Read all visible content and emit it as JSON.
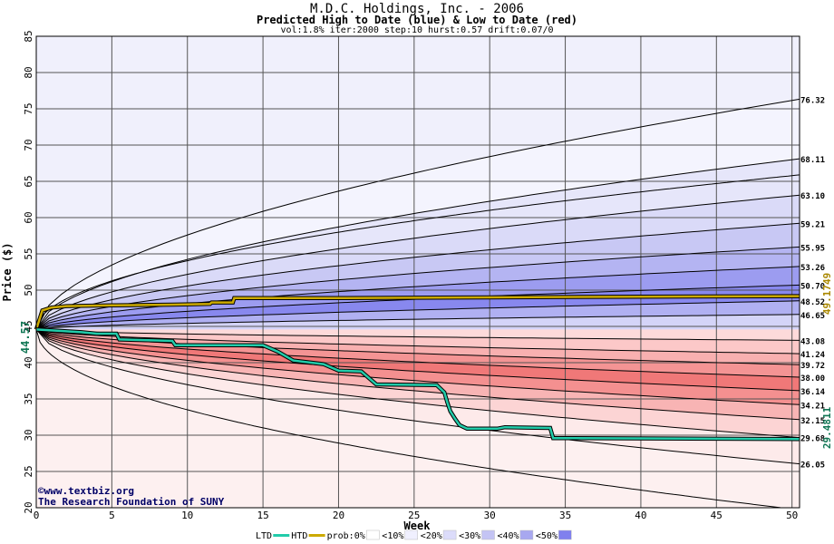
{
  "chart_data": {
    "type": "area",
    "title": "M.D.C. Holdings, Inc. - 2006",
    "subtitle": "Predicted High to Date (blue) &  Low to Date (red)",
    "params": "vol:1.8% iter:2000 step:10 hurst:0.57 drift:0.07/0",
    "xlabel": "Week",
    "ylabel": "Price ($)",
    "xlim": [
      0,
      50.5
    ],
    "ylim": [
      20,
      85
    ],
    "xticks": [
      0,
      5,
      10,
      15,
      20,
      25,
      30,
      35,
      40,
      45,
      50
    ],
    "yticks": [
      20,
      25,
      30,
      35,
      40,
      45,
      50,
      55,
      60,
      65,
      70,
      75,
      80,
      85
    ],
    "grid": true,
    "start_price": 44.57,
    "start_label": "44.57",
    "high_curves_end": [
      76.32,
      68.11,
      63.1,
      59.21,
      55.95,
      53.26,
      50.7,
      48.52,
      46.65
    ],
    "high_curve_labels": [
      "76.32",
      "68.11",
      "63.10",
      "59.21",
      "55.95",
      "53.26",
      "50.70",
      "48.52",
      "46.65"
    ],
    "low_curves_end": [
      43.08,
      41.24,
      39.72,
      38.0,
      36.14,
      34.21,
      32.15,
      29.68,
      26.05
    ],
    "low_curve_labels": [
      "43.08",
      "41.24",
      "39.72",
      "38.00",
      "36.14",
      "34.21",
      "32.15",
      "29.68",
      "26.05"
    ],
    "htd_series": {
      "name": "HTD",
      "color": "#ccaa00",
      "final_label": "49.1749",
      "points": [
        [
          0,
          44.57
        ],
        [
          0.4,
          47.2
        ],
        [
          1,
          47.6
        ],
        [
          2,
          47.8
        ],
        [
          5,
          47.9
        ],
        [
          9,
          48.0
        ],
        [
          11.5,
          48.1
        ],
        [
          11.6,
          48.3
        ],
        [
          13,
          48.3
        ],
        [
          13.1,
          48.9
        ],
        [
          20,
          48.9
        ],
        [
          30,
          49.0
        ],
        [
          40,
          49.1
        ],
        [
          50.5,
          49.17
        ]
      ]
    },
    "ltd_series": {
      "name": "LTD",
      "color": "#22ccaa",
      "final_label": "29.4811",
      "points": [
        [
          0,
          44.57
        ],
        [
          3,
          44.2
        ],
        [
          4,
          44.0
        ],
        [
          5.3,
          44.0
        ],
        [
          5.5,
          43.2
        ],
        [
          9,
          43.0
        ],
        [
          9.2,
          42.4
        ],
        [
          15,
          42.4
        ],
        [
          16,
          41.5
        ],
        [
          17,
          40.3
        ],
        [
          19,
          39.8
        ],
        [
          20,
          38.9
        ],
        [
          21.5,
          38.8
        ],
        [
          22,
          37.9
        ],
        [
          22.5,
          37.0
        ],
        [
          26.5,
          36.9
        ],
        [
          27,
          35.9
        ],
        [
          27.2,
          34.5
        ],
        [
          27.4,
          33.3
        ],
        [
          27.7,
          32.3
        ],
        [
          28,
          31.4
        ],
        [
          28.5,
          30.9
        ],
        [
          29.5,
          30.9
        ],
        [
          30.5,
          30.9
        ],
        [
          31,
          31.1
        ],
        [
          34,
          31.0
        ],
        [
          34.2,
          29.6
        ],
        [
          50.5,
          29.48
        ]
      ]
    },
    "legend": {
      "items": [
        "LTD",
        "HTD",
        "prob:0%",
        "<10%",
        "<20%",
        "<30%",
        "<40%",
        "<50%"
      ],
      "colors": [
        "#22ccaa",
        "#ccaa00",
        "#ffffff",
        "#f0f0ff",
        "#dcdcfa",
        "#c4c4f4",
        "#a8a8f0",
        "#8080ee"
      ]
    },
    "band_colors_blue": [
      "#f4f4fe",
      "#e6e6fa",
      "#dadaf8",
      "#c8c8f4",
      "#b4b4f2",
      "#9c9cf0",
      "#8888ee",
      "#b0b0f2",
      "#d4d4f8"
    ],
    "band_colors_red": [
      "#fddada",
      "#fcc8c8",
      "#f8b0b0",
      "#f49494",
      "#f07878",
      "#f49090",
      "#f8b4b4",
      "#fcd4d4",
      "#fdeaea"
    ],
    "outer_upper_color": "#f0f0fc",
    "outer_lower_color": "#fdf0f0"
  },
  "watermark": {
    "line1": "©www.textbiz.org",
    "line2": "The Research Foundation of SUNY"
  }
}
